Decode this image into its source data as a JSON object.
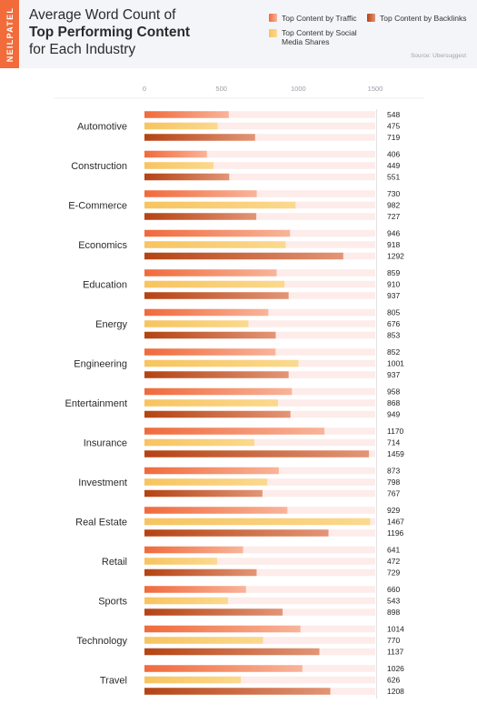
{
  "brand": "NEILPATEL",
  "title": {
    "line1": "Average Word Count of",
    "line2_bold": "Top Performing Content",
    "line3": "for Each Industry"
  },
  "legend": {
    "traffic": "Top Content by Traffic",
    "backlinks": "Top Content by Backlinks",
    "social": "Top Content by Social Media Shares"
  },
  "source": "Source: Ubersuggest",
  "colors": {
    "traffic_start": "#f06a3b",
    "traffic_end": "#f9b49a",
    "social_start": "#f7c45f",
    "social_end": "#fbd98e",
    "backlinks_start": "#b44313",
    "backlinks_end": "#e39576",
    "track": "#fdecea",
    "brand": "#f26b3a"
  },
  "chart_data": {
    "type": "bar",
    "orientation": "horizontal",
    "xlim": [
      0,
      1500
    ],
    "ticks": [
      0,
      500,
      1000,
      1500
    ],
    "grid": false,
    "legend_position": "top-right",
    "categories": [
      "Automotive",
      "Construction",
      "E-Commerce",
      "Economics",
      "Education",
      "Energy",
      "Engineering",
      "Entertainment",
      "Insurance",
      "Investment",
      "Real Estate",
      "Retail",
      "Sports",
      "Technology",
      "Travel"
    ],
    "series": [
      {
        "name": "Top Content by Traffic",
        "key": "traffic",
        "values": [
          548,
          406,
          730,
          946,
          859,
          805,
          852,
          958,
          1170,
          873,
          929,
          641,
          660,
          1014,
          1026
        ]
      },
      {
        "name": "Top Content by Social Media Shares",
        "key": "social",
        "values": [
          475,
          449,
          982,
          918,
          910,
          676,
          1001,
          868,
          714,
          798,
          1467,
          472,
          543,
          770,
          626
        ]
      },
      {
        "name": "Top Content by Backlinks",
        "key": "backlinks",
        "values": [
          719,
          551,
          727,
          1292,
          937,
          853,
          937,
          949,
          1459,
          767,
          1196,
          729,
          898,
          1137,
          1208
        ]
      }
    ]
  }
}
